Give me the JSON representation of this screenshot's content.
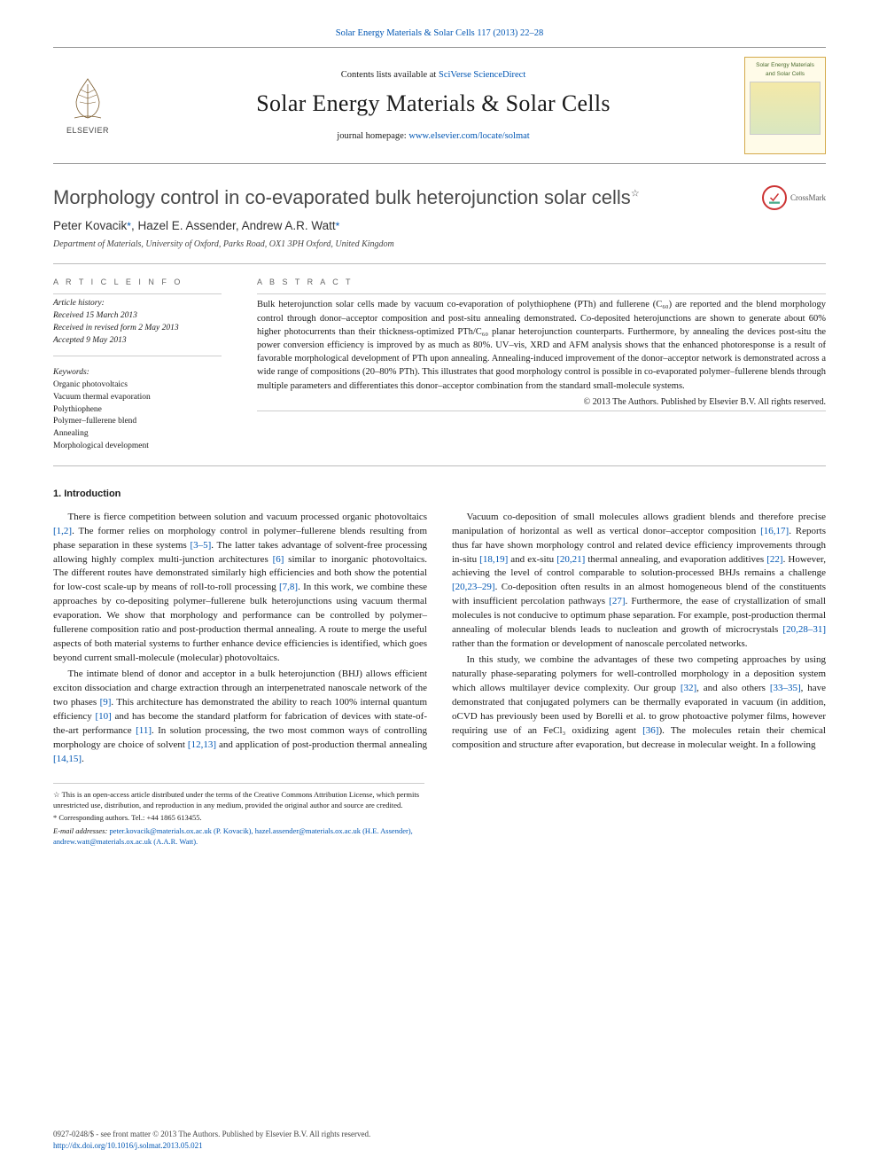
{
  "top_ref": {
    "journal_abbrev": "Solar Energy Materials & Solar Cells 117 (2013) 22–28",
    "link_color": "#0056b3"
  },
  "masthead": {
    "contents_prefix": "Contents lists available at ",
    "contents_link": "SciVerse ScienceDirect",
    "journal_name": "Solar Energy Materials & Solar Cells",
    "homepage_prefix": "journal homepage: ",
    "homepage_url": "www.elsevier.com/locate/solmat",
    "elsevier_label": "ELSEVIER",
    "cover_text_line1": "Solar Energy Materials",
    "cover_text_line2": "and Solar Cells"
  },
  "article": {
    "title": "Morphology control in co-evaporated bulk heterojunction solar cells",
    "title_note_marker": "☆",
    "crossmark_label": "CrossMark",
    "authors_html": "Peter Kovacik",
    "authors": [
      {
        "name": "Peter Kovacik",
        "corr": true
      },
      {
        "name": "Hazel E. Assender",
        "corr": false
      },
      {
        "name": "Andrew A.R. Watt",
        "corr": true
      }
    ],
    "affiliation": "Department of Materials, University of Oxford, Parks Road, OX1 3PH Oxford, United Kingdom"
  },
  "meta": {
    "info_head": "A R T I C L E  I N F O",
    "history_head": "Article history:",
    "received": "Received 15 March 2013",
    "revised": "Received in revised form 2 May 2013",
    "accepted": "Accepted 9 May 2013",
    "keywords_head": "Keywords:",
    "keywords": [
      "Organic photovoltaics",
      "Vacuum thermal evaporation",
      "Polythiophene",
      "Polymer–fullerene blend",
      "Annealing",
      "Morphological development"
    ]
  },
  "abstract": {
    "head": "A B S T R A C T",
    "text": "Bulk heterojunction solar cells made by vacuum co-evaporation of polythiophene (PTh) and fullerene (C₆₀) are reported and the blend morphology control through donor–acceptor composition and post-situ annealing demonstrated. Co-deposited heterojunctions are shown to generate about 60% higher photocurrents than their thickness-optimized PTh/C₆₀ planar heterojunction counterparts. Furthermore, by annealing the devices post-situ the power conversion efficiency is improved by as much as 80%. UV–vis, XRD and AFM analysis shows that the enhanced photoresponse is a result of favorable morphological development of PTh upon annealing. Annealing-induced improvement of the donor–acceptor network is demonstrated across a wide range of compositions (20–80% PTh). This illustrates that good morphology control is possible in co-evaporated polymer–fullerene blends through multiple parameters and differentiates this donor–acceptor combination from the standard small-molecule systems.",
    "copyright": "© 2013 The Authors. Published by Elsevier B.V. All rights reserved."
  },
  "section1": {
    "head": "1.  Introduction",
    "p1": "There is fierce competition between solution and vacuum processed organic photovoltaics [1,2]. The former relies on morphology control in polymer–fullerene blends resulting from phase separation in these systems [3–5]. The latter takes advantage of solvent-free processing allowing highly complex multi-junction architectures [6] similar to inorganic photovoltaics. The different routes have demonstrated similarly high efficiencies and both show the potential for low-cost scale-up by means of roll-to-roll processing [7,8]. In this work, we combine these approaches by co-depositing polymer–fullerene bulk heterojunctions using vacuum thermal evaporation. We show that morphology and performance can be controlled by polymer–fullerene composition ratio and post-production thermal annealing. A route to merge the useful aspects of both material systems to further enhance device efficiencies is identified, which goes beyond current small-molecule (molecular) photovoltaics.",
    "p2": "The intimate blend of donor and acceptor in a bulk heterojunction (BHJ) allows efficient exciton dissociation and charge extraction through an interpenetrated nanoscale network of the two phases [9]. This architecture has demonstrated the ability to reach 100% internal quantum efficiency [10] and has become the standard platform for fabrication of devices with state-of-the-art performance [11]. In solution processing, the two most common ways of controlling morphology are choice of solvent [12,13] and application of post-production thermal annealing [14,15].",
    "p3": "Vacuum co-deposition of small molecules allows gradient blends and therefore precise manipulation of horizontal as well as vertical donor–acceptor composition [16,17]. Reports thus far have shown morphology control and related device efficiency improvements through in-situ [18,19] and ex-situ [20,21] thermal annealing, and evaporation additives [22]. However, achieving the level of control comparable to solution-processed BHJs remains a challenge [20,23–29]. Co-deposition often results in an almost homogeneous blend of the constituents with insufficient percolation pathways [27]. Furthermore, the ease of crystallization of small molecules is not conducive to optimum phase separation. For example, post-production thermal annealing of molecular blends leads to nucleation and growth of microcrystals [20,28–31] rather than the formation or development of nanoscale percolated networks.",
    "p4": "In this study, we combine the advantages of these two competing approaches by using naturally phase-separating polymers for well-controlled morphology in a deposition system which allows multilayer device complexity. Our group [32], and also others [33–35], have demonstrated that conjugated polymers can be thermally evaporated in vacuum (in addition, oCVD has previously been used by Borelli et al. to grow photoactive polymer films, however requiring use of an FeCl₃ oxidizing agent [36]). The molecules retain their chemical composition and structure after evaporation, but decrease in molecular weight. In a following"
  },
  "footnotes": {
    "note": "☆ This is an open-access article distributed under the terms of the Creative Commons Attribution License, which permits unrestricted use, distribution, and reproduction in any medium, provided the original author and source are credited.",
    "corr": "* Corresponding authors. Tel.: +44 1865 613455.",
    "email_label": "E-mail addresses: ",
    "emails": "peter.kovacik@materials.ox.ac.uk (P. Kovacik), hazel.assender@materials.ox.ac.uk (H.E. Assender), andrew.watt@materials.ox.ac.uk (A.A.R. Watt)."
  },
  "footer": {
    "issn_line": "0927-0248/$ - see front matter © 2013 The Authors. Published by Elsevier B.V. All rights reserved.",
    "doi": "http://dx.doi.org/10.1016/j.solmat.2013.05.021"
  },
  "colors": {
    "link": "#0056b3",
    "rule": "#bbbbbb",
    "text": "#1a1a1a",
    "meta_head": "#666666"
  }
}
